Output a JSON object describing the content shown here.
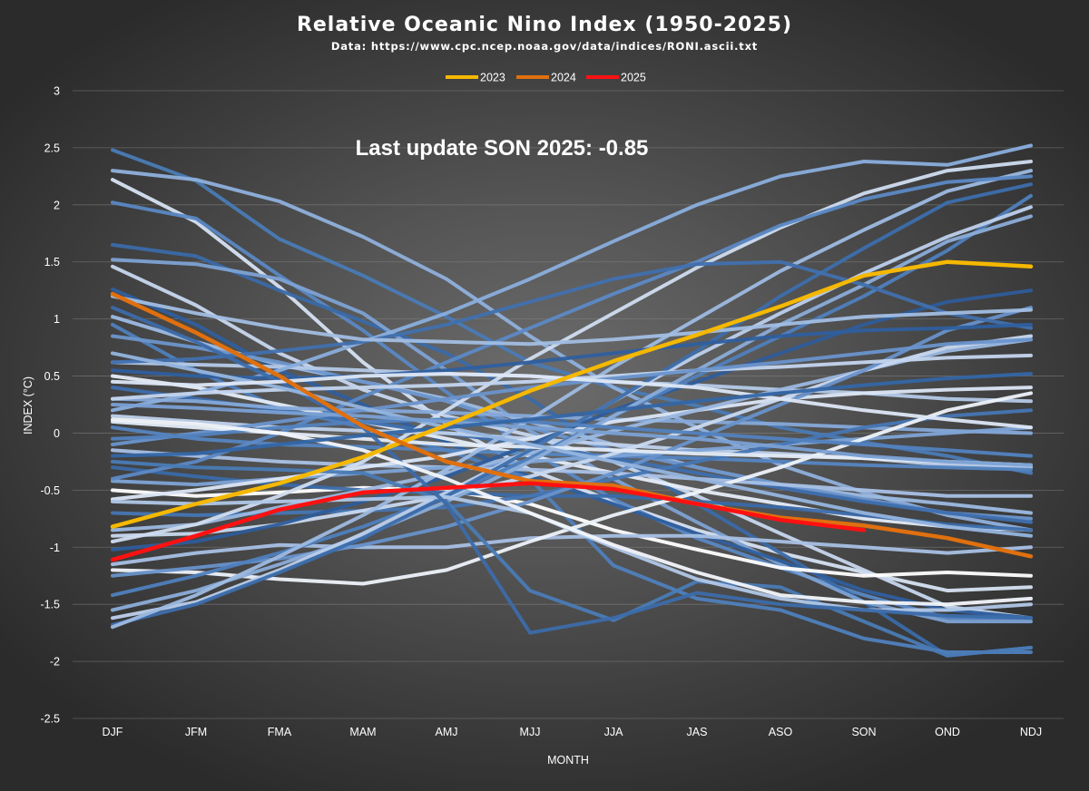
{
  "chart_data": {
    "type": "line",
    "title": "Relative Oceanic Nino Index (1950-2025)",
    "subtitle": "Data: https://www.cpc.ncep.noaa.gov/data/indices/RONI.ascii.txt",
    "annotation": "Last update SON 2025: -0.85",
    "xlabel": "MONTH",
    "ylabel": "INDEX (°C)",
    "categories": [
      "DJF",
      "JFM",
      "FMA",
      "MAM",
      "AMJ",
      "MJJ",
      "JJA",
      "JAS",
      "ASO",
      "SON",
      "OND",
      "NDJ"
    ],
    "ylim": [
      -2.5,
      3
    ],
    "yticks": [
      "3",
      "2.5",
      "2",
      "1.5",
      "1",
      "0.5",
      "0",
      "-0.5",
      "-1",
      "-1.5",
      "-2",
      "-2.5"
    ],
    "grid": true,
    "legend_position": "top",
    "highlight_series": [
      {
        "name": "2023",
        "color": "#f5b800",
        "values": [
          -0.82,
          -0.62,
          -0.44,
          -0.21,
          0.07,
          0.37,
          0.63,
          0.86,
          1.11,
          1.38,
          1.5,
          1.46
        ]
      },
      {
        "name": "2024",
        "color": "#e0700f",
        "values": [
          1.22,
          0.88,
          0.5,
          0.06,
          -0.25,
          -0.42,
          -0.46,
          -0.62,
          -0.74,
          -0.81,
          -0.92,
          -1.08
        ]
      },
      {
        "name": "2025",
        "color": "#ff1111",
        "values": [
          -1.11,
          -0.9,
          -0.67,
          -0.52,
          -0.48,
          -0.44,
          -0.49,
          -0.62,
          -0.76,
          -0.85
        ]
      }
    ],
    "background_series": [
      {
        "color": "#4a7bb5",
        "values": [
          2.48,
          2.21,
          1.7,
          1.38,
          1.02,
          0.62,
          0.4,
          0.24,
          0.05,
          -0.08,
          -0.2,
          -0.35
        ]
      },
      {
        "color": "#8fb0dc",
        "values": [
          2.3,
          2.22,
          2.03,
          1.72,
          1.35,
          0.85,
          0.4,
          0.05,
          -0.28,
          -0.52,
          -0.72,
          -0.85
        ]
      },
      {
        "color": "#d6e2f3",
        "values": [
          2.22,
          1.85,
          1.28,
          0.62,
          0.08,
          -0.32,
          -0.6,
          -0.85,
          -1.05,
          -1.22,
          -1.38,
          -1.35
        ]
      },
      {
        "color": "#5a88c4",
        "values": [
          2.02,
          1.88,
          1.38,
          0.9,
          0.36,
          -0.15,
          -0.58,
          -0.92,
          -1.18,
          -1.42,
          -1.62,
          -1.62
        ]
      },
      {
        "color": "#3a6aa8",
        "values": [
          1.65,
          1.55,
          1.25,
          0.98,
          0.7,
          0.3,
          -0.18,
          -0.62,
          -1.05,
          -1.48,
          -1.95,
          -1.88
        ]
      },
      {
        "color": "#7da2d4",
        "values": [
          1.52,
          1.48,
          1.35,
          1.05,
          0.55,
          0.02,
          -0.4,
          -0.78,
          -1.15,
          -1.48,
          -1.65,
          -1.65
        ]
      },
      {
        "color": "#c7d7ee",
        "values": [
          1.46,
          1.12,
          0.7,
          0.38,
          0.15,
          -0.02,
          -0.25,
          -0.55,
          -0.88,
          -1.2,
          -1.52,
          -1.62
        ]
      },
      {
        "color": "#2f5f9e",
        "values": [
          1.26,
          0.95,
          0.55,
          0.25,
          -0.08,
          -0.38,
          -0.62,
          -0.88,
          -1.12,
          -1.38,
          -1.55,
          -1.62
        ]
      },
      {
        "color": "#9dbbe2",
        "values": [
          1.02,
          0.8,
          0.6,
          0.45,
          0.3,
          0.1,
          -0.1,
          -0.3,
          -0.45,
          -0.55,
          -0.62,
          -0.7
        ]
      },
      {
        "color": "#4f80bd",
        "values": [
          0.95,
          0.55,
          0.22,
          0.05,
          -0.15,
          -0.4,
          -1.16,
          -1.45,
          -1.55,
          -1.8,
          -1.92,
          -1.92
        ]
      },
      {
        "color": "#6d96cc",
        "values": [
          0.85,
          0.75,
          0.62,
          0.45,
          0.28,
          0.05,
          -0.15,
          -0.3,
          -0.45,
          -0.58,
          -0.7,
          -0.75
        ]
      },
      {
        "color": "#b5cae8",
        "values": [
          0.62,
          0.6,
          0.58,
          0.55,
          0.52,
          0.5,
          0.45,
          0.42,
          0.38,
          0.35,
          0.3,
          0.28
        ]
      },
      {
        "color": "#e6edf8",
        "values": [
          0.5,
          0.4,
          0.25,
          0.1,
          -0.05,
          -0.2,
          -0.35,
          -0.5,
          -0.62,
          -0.75,
          -0.82,
          -0.85
        ]
      },
      {
        "color": "#3e6fae",
        "values": [
          0.4,
          0.3,
          0.2,
          0.1,
          0.0,
          -0.1,
          -0.22,
          -0.35,
          -0.48,
          -0.6,
          -0.7,
          -0.78
        ]
      },
      {
        "color": "#86a9d9",
        "values": [
          0.3,
          0.28,
          0.22,
          0.2,
          0.18,
          0.15,
          0.12,
          0.1,
          0.08,
          0.05,
          0.02,
          0.0
        ]
      },
      {
        "color": "#c0d2ec",
        "values": [
          0.15,
          0.1,
          0.05,
          0.02,
          0.0,
          -0.05,
          -0.1,
          -0.15,
          -0.18,
          -0.22,
          -0.28,
          -0.3
        ]
      },
      {
        "color": "#5585c1",
        "values": [
          0.05,
          -0.05,
          -0.1,
          -0.12,
          -0.15,
          -0.18,
          -0.2,
          -0.22,
          -0.25,
          -0.28,
          -0.3,
          -0.32
        ]
      },
      {
        "color": "#a9c1e6",
        "values": [
          -0.15,
          -0.2,
          -0.25,
          -0.28,
          -0.3,
          -0.32,
          -0.35,
          -0.4,
          -0.45,
          -0.5,
          -0.55,
          -0.55
        ]
      },
      {
        "color": "#ffffff",
        "values": [
          -0.5,
          -0.55,
          -0.52,
          -0.48,
          -0.5,
          -0.62,
          -0.85,
          -1.02,
          -1.18,
          -1.25,
          -1.22,
          -1.25
        ]
      },
      {
        "color": "#3a6aa8",
        "values": [
          -0.3,
          -0.38,
          -0.45,
          -0.5,
          -0.52,
          -0.55,
          -0.55,
          -0.6,
          -0.65,
          -0.72,
          -0.8,
          -0.85
        ]
      },
      {
        "color": "#7ea4d6",
        "values": [
          -0.42,
          -0.45,
          -0.4,
          -0.35,
          -0.3,
          -0.25,
          -0.2,
          -0.15,
          -0.1,
          -0.05,
          0.0,
          0.05
        ]
      },
      {
        "color": "#dbe6f5",
        "values": [
          -0.58,
          -0.5,
          -0.4,
          -0.3,
          -0.2,
          -0.05,
          0.1,
          0.2,
          0.3,
          0.35,
          0.38,
          0.4
        ]
      },
      {
        "color": "#4676b4",
        "values": [
          -0.7,
          -0.72,
          -0.7,
          -0.68,
          -0.65,
          -0.55,
          -0.4,
          -0.25,
          -0.1,
          0.05,
          0.15,
          0.2
        ]
      },
      {
        "color": "#9bb8e0",
        "values": [
          -0.85,
          -0.8,
          -0.65,
          -0.5,
          -0.35,
          -0.18,
          0.02,
          0.2,
          0.38,
          0.55,
          0.72,
          0.82
        ]
      },
      {
        "color": "#c9d9ef",
        "values": [
          -0.9,
          -0.88,
          -0.8,
          -0.68,
          -0.55,
          -0.38,
          -0.18,
          0.05,
          0.3,
          0.55,
          0.75,
          0.85
        ]
      },
      {
        "color": "#2e5c9a",
        "values": [
          -1.02,
          -0.95,
          -0.8,
          -0.6,
          -0.38,
          -0.1,
          0.2,
          0.45,
          0.7,
          0.95,
          1.15,
          1.25
        ]
      },
      {
        "color": "#a8c0e4",
        "values": [
          -1.15,
          -1.05,
          -0.98,
          -1.0,
          -1.0,
          -0.92,
          -0.9,
          -0.9,
          -0.95,
          -1.0,
          -1.05,
          -1.0
        ]
      },
      {
        "color": "#eef3fa",
        "values": [
          -1.2,
          -1.22,
          -1.28,
          -1.32,
          -1.2,
          -0.95,
          -0.72,
          -0.52,
          -0.3,
          -0.05,
          0.2,
          0.35
        ]
      },
      {
        "color": "#6892cb",
        "values": [
          -1.25,
          -1.18,
          -1.1,
          -0.98,
          -0.82,
          -0.6,
          -0.35,
          -0.05,
          0.25,
          0.55,
          0.9,
          1.1
        ]
      },
      {
        "color": "#4f80bd",
        "values": [
          -1.42,
          -1.25,
          -1.05,
          -0.82,
          -0.55,
          -0.22,
          0.15,
          0.5,
          0.85,
          1.2,
          1.6,
          2.08
        ]
      },
      {
        "color": "#8badd9",
        "values": [
          -1.55,
          -1.38,
          -1.15,
          -0.9,
          -0.6,
          -0.25,
          0.15,
          0.55,
          0.95,
          1.3,
          1.68,
          1.9
        ]
      },
      {
        "color": "#bdd0ec",
        "values": [
          -1.62,
          -1.48,
          -1.2,
          -0.88,
          -0.52,
          -0.15,
          0.28,
          0.68,
          1.05,
          1.4,
          1.72,
          1.98
        ]
      },
      {
        "color": "#3d6eac",
        "values": [
          -1.68,
          -1.5,
          -1.22,
          -0.92,
          -0.55,
          -0.15,
          0.28,
          0.72,
          1.2,
          1.62,
          2.02,
          2.18
        ]
      },
      {
        "color": "#9ebbe2",
        "values": [
          -1.7,
          -1.42,
          -1.08,
          -0.72,
          -0.32,
          0.12,
          0.58,
          1.0,
          1.42,
          1.78,
          2.12,
          2.3
        ]
      },
      {
        "color": "#d0ddf0",
        "values": [
          -0.95,
          -0.8,
          -0.55,
          -0.25,
          0.2,
          0.65,
          1.05,
          1.45,
          1.8,
          2.1,
          2.3,
          2.38
        ]
      },
      {
        "color": "#5c89c5",
        "values": [
          -0.4,
          -0.25,
          0.0,
          0.32,
          0.62,
          0.92,
          1.22,
          1.5,
          1.82,
          2.05,
          2.2,
          2.25
        ]
      },
      {
        "color": "#8aaedd",
        "values": [
          0.2,
          0.35,
          0.55,
          0.8,
          1.05,
          1.35,
          1.68,
          2.0,
          2.25,
          2.38,
          2.35,
          2.52
        ]
      },
      {
        "color": "#4170ae",
        "values": [
          0.62,
          0.65,
          0.72,
          0.8,
          0.95,
          1.15,
          1.35,
          1.48,
          1.5,
          1.3,
          1.05,
          0.92
        ]
      },
      {
        "color": "#a2bee3",
        "values": [
          1.2,
          1.05,
          0.92,
          0.82,
          0.8,
          0.78,
          0.82,
          0.88,
          0.95,
          1.02,
          1.05,
          1.08
        ]
      },
      {
        "color": "#2f5f9e",
        "values": [
          0.55,
          0.5,
          0.48,
          0.5,
          0.55,
          0.62,
          0.7,
          0.78,
          0.85,
          0.9,
          0.92,
          0.95
        ]
      },
      {
        "color": "#c4d5ee",
        "values": [
          0.3,
          0.35,
          0.38,
          0.4,
          0.42,
          0.45,
          0.5,
          0.55,
          0.58,
          0.62,
          0.66,
          0.68
        ]
      },
      {
        "color": "#6a94cc",
        "values": [
          -0.1,
          0.0,
          0.1,
          0.2,
          0.3,
          0.4,
          0.48,
          0.55,
          0.62,
          0.7,
          0.78,
          0.82
        ]
      },
      {
        "color": "#e4ecf7",
        "values": [
          0.1,
          0.05,
          0.0,
          -0.05,
          -0.1,
          -0.12,
          -0.15,
          -0.18,
          -0.2,
          -0.22,
          -0.25,
          -0.28
        ]
      },
      {
        "color": "#4a7bb5",
        "values": [
          -0.25,
          -0.3,
          -0.32,
          -0.35,
          -0.6,
          -1.38,
          -1.64,
          -1.3,
          -1.35,
          -1.65,
          -1.95,
          -1.88
        ]
      },
      {
        "color": "#b0c7e7",
        "values": [
          -0.6,
          -0.62,
          -0.6,
          -0.58,
          -0.56,
          -0.7,
          -1.0,
          -1.28,
          -1.45,
          -1.55,
          -1.55,
          -1.5
        ]
      },
      {
        "color": "#3c6caa",
        "values": [
          1.1,
          0.8,
          0.45,
          0.05,
          -0.62,
          -1.75,
          -1.62,
          -1.4,
          -1.5,
          -1.55,
          -1.6,
          -1.62
        ]
      },
      {
        "color": "#95b5df",
        "values": [
          0.7,
          0.55,
          0.4,
          0.22,
          0.05,
          -0.1,
          -0.25,
          -0.4,
          -0.55,
          -0.7,
          -0.82,
          -0.9
        ]
      },
      {
        "color": "#dde7f5",
        "values": [
          0.45,
          0.42,
          0.45,
          0.5,
          0.52,
          0.5,
          0.45,
          0.4,
          0.3,
          0.2,
          0.12,
          0.05
        ]
      },
      {
        "color": "#5282bf",
        "values": [
          -0.05,
          -0.02,
          0.05,
          0.1,
          0.12,
          0.1,
          0.05,
          0.0,
          -0.05,
          -0.1,
          -0.15,
          -0.2
        ]
      },
      {
        "color": "#7aa0d4",
        "values": [
          0.25,
          0.22,
          0.18,
          0.15,
          0.1,
          0.05,
          0.0,
          -0.05,
          -0.12,
          -0.2,
          -0.25,
          -0.28
        ]
      },
      {
        "color": "#f2f6fb",
        "values": [
          0.12,
          0.08,
          0.0,
          -0.15,
          -0.4,
          -0.7,
          -0.98,
          -1.22,
          -1.42,
          -1.48,
          -1.5,
          -1.45
        ]
      },
      {
        "color": "#3466a5",
        "values": [
          -0.2,
          -0.18,
          -0.1,
          -0.02,
          0.05,
          0.12,
          0.2,
          0.28,
          0.35,
          0.42,
          0.48,
          0.52
        ]
      }
    ]
  }
}
